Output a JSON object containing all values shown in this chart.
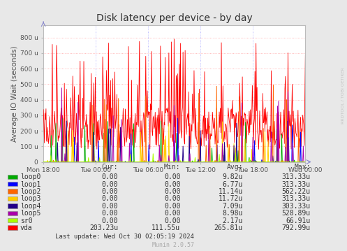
{
  "title": "Disk latency per device - by day",
  "ylabel": "Average IO Wait (seconds)",
  "bg_color": "#e8e8e8",
  "plot_bg_color": "#ffffff",
  "grid_color_h": "#ffaaaa",
  "grid_color_v": "#aaaaff",
  "ytick_labels": [
    "0",
    "100 u",
    "200 u",
    "300 u",
    "400 u",
    "500 u",
    "600 u",
    "700 u",
    "800 u"
  ],
  "ytick_values": [
    0,
    100,
    200,
    300,
    400,
    500,
    600,
    700,
    800
  ],
  "ylim": [
    0,
    880
  ],
  "xtick_labels": [
    "Mon 18:00",
    "Tue 00:00",
    "Tue 06:00",
    "Tue 12:00",
    "Tue 18:00",
    "Wed 00:00"
  ],
  "title_color": "#333333",
  "axis_label_color": "#555555",
  "tick_label_color": "#555555",
  "watermark": "RRDTOOL / TOBI OETIKER",
  "munin_version": "Munin 2.0.57",
  "last_update": "Last update: Wed Oct 30 02:05:19 2024",
  "devices": [
    {
      "name": "loop0",
      "color": "#00aa00",
      "cur": "0.00",
      "min": "0.00",
      "avg": "9.82u",
      "max": "313.33u"
    },
    {
      "name": "loop1",
      "color": "#0000ff",
      "cur": "0.00",
      "min": "0.00",
      "avg": "6.77u",
      "max": "313.33u"
    },
    {
      "name": "loop2",
      "color": "#ff6600",
      "cur": "0.00",
      "min": "0.00",
      "avg": "11.14u",
      "max": "562.22u"
    },
    {
      "name": "loop3",
      "color": "#ffcc00",
      "cur": "0.00",
      "min": "0.00",
      "avg": "11.72u",
      "max": "313.33u"
    },
    {
      "name": "loop4",
      "color": "#220088",
      "cur": "0.00",
      "min": "0.00",
      "avg": "7.09u",
      "max": "303.33u"
    },
    {
      "name": "loop5",
      "color": "#aa00aa",
      "cur": "0.00",
      "min": "0.00",
      "avg": "8.98u",
      "max": "528.89u"
    },
    {
      "name": "sr0",
      "color": "#aaff00",
      "cur": "0.00",
      "min": "0.00",
      "avg": "2.17u",
      "max": "66.91u"
    },
    {
      "name": "vda",
      "color": "#ff0000",
      "cur": "203.23u",
      "min": "111.55u",
      "avg": "265.81u",
      "max": "792.99u"
    }
  ],
  "n_points": 500,
  "seed": 42
}
